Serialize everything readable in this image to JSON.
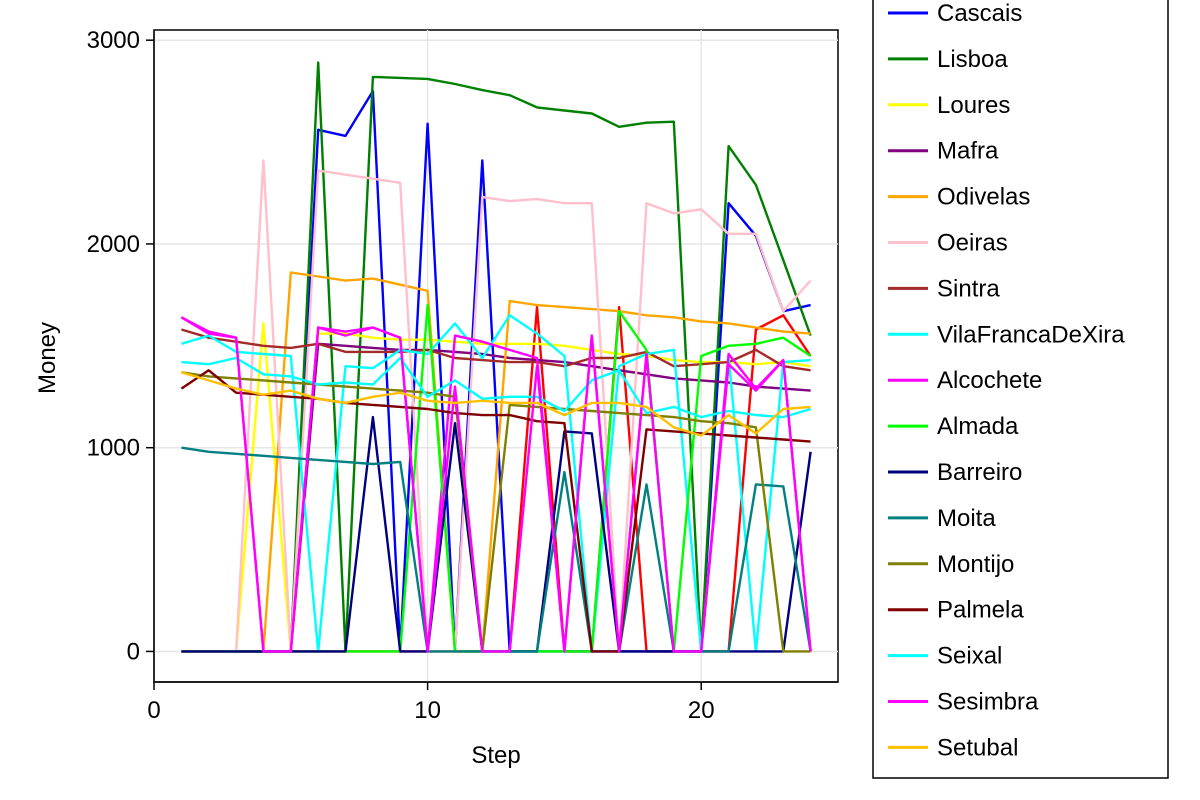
{
  "chart_data": {
    "type": "line",
    "xlabel": "Step",
    "ylabel": "Money",
    "xlim": [
      0,
      25
    ],
    "ylim": [
      -150,
      3050
    ],
    "xticks": [
      0,
      10,
      20
    ],
    "yticks": [
      0,
      1000,
      2000,
      3000
    ],
    "grid": true,
    "legend_position": "right",
    "x": [
      1,
      2,
      3,
      4,
      5,
      6,
      7,
      8,
      9,
      10,
      11,
      12,
      13,
      14,
      15,
      16,
      17,
      18,
      19,
      20,
      21,
      22,
      23,
      24
    ],
    "series": [
      {
        "name": "Cascais",
        "color": "#0000ff",
        "values": [
          0,
          0,
          0,
          0,
          0,
          2560,
          2530,
          2750,
          0,
          2590,
          0,
          2410,
          0,
          0,
          0,
          0,
          0,
          0,
          0,
          0,
          2200,
          2040,
          1670,
          1700
        ]
      },
      {
        "name": "Lisboa",
        "color": "#008000",
        "values": [
          0,
          0,
          0,
          0,
          0,
          2890,
          0,
          2820,
          2815,
          2810,
          2785,
          2755,
          2730,
          2670,
          2655,
          2640,
          2575,
          2595,
          2600,
          0,
          2480,
          2290,
          1920,
          1550
        ]
      },
      {
        "name": "Loures",
        "color": "#ffff00",
        "values": [
          0,
          0,
          0,
          1610,
          0,
          1560,
          1560,
          1540,
          1530,
          1530,
          1520,
          1510,
          1510,
          1510,
          1500,
          1480,
          1460,
          1450,
          1430,
          1420,
          1420,
          1410,
          1420,
          1400
        ]
      },
      {
        "name": "Mafra",
        "color": "#800080",
        "values": [
          0,
          0,
          0,
          0,
          0,
          1510,
          1500,
          1490,
          1480,
          1480,
          1470,
          1460,
          1440,
          1430,
          1420,
          1400,
          1380,
          1360,
          1340,
          1330,
          1320,
          1300,
          1290,
          1280
        ]
      },
      {
        "name": "Odivelas",
        "color": "#ffa500",
        "values": [
          0,
          0,
          0,
          0,
          1860,
          1840,
          1820,
          1830,
          1800,
          1770,
          0,
          0,
          1720,
          1700,
          1690,
          1680,
          1670,
          1650,
          1640,
          1620,
          1610,
          1590,
          1570,
          1560
        ]
      },
      {
        "name": "Oeiras",
        "color": "#ffc0cb",
        "values": [
          0,
          0,
          0,
          2410,
          0,
          2360,
          2340,
          2320,
          2300,
          0,
          0,
          2230,
          2210,
          2220,
          2200,
          2200,
          0,
          2200,
          2150,
          2170,
          2050,
          2050,
          1670,
          1820
        ]
      },
      {
        "name": "Sintra",
        "color": "#a52a2a",
        "values": [
          1580,
          1540,
          1520,
          1500,
          1490,
          1510,
          1470,
          1470,
          1470,
          1480,
          1440,
          1430,
          1420,
          1420,
          1400,
          1440,
          1440,
          1470,
          1400,
          1410,
          1420,
          1480,
          1400,
          1380
        ]
      },
      {
        "name": "VilaFrancaDeXira",
        "color": "#00ffff",
        "values": [
          1510,
          1550,
          1470,
          1460,
          1450,
          0,
          1400,
          1390,
          1480,
          1460,
          1610,
          1440,
          1650,
          1560,
          1450,
          0,
          1400,
          1460,
          1480,
          0,
          1450,
          0,
          1420,
          1430
        ]
      },
      {
        "name": "Alcochete",
        "color": "#ff00ff",
        "values": [
          1640,
          1570,
          1540,
          0,
          0,
          1590,
          1570,
          1590,
          1540,
          0,
          1550,
          1520,
          1480,
          1440,
          0,
          1550,
          0,
          1460,
          0,
          0,
          1460,
          1290,
          1430,
          0
        ]
      },
      {
        "name": "Almada",
        "color": "#00ff00",
        "values": [
          0,
          0,
          0,
          0,
          0,
          0,
          0,
          0,
          0,
          1700,
          0,
          0,
          0,
          0,
          0,
          0,
          1670,
          1480,
          0,
          1450,
          1500,
          1510,
          1540,
          1450
        ]
      },
      {
        "name": "Barreiro",
        "color": "#000080",
        "values": [
          0,
          0,
          0,
          0,
          0,
          0,
          0,
          1150,
          0,
          0,
          1120,
          0,
          0,
          0,
          1080,
          1070,
          0,
          0,
          0,
          0,
          0,
          0,
          0,
          980
        ]
      },
      {
        "name": "Moita",
        "color": "#008080",
        "values": [
          1000,
          980,
          970,
          960,
          950,
          940,
          930,
          920,
          930,
          0,
          0,
          0,
          0,
          0,
          880,
          0,
          0,
          820,
          0,
          0,
          0,
          820,
          810,
          0
        ]
      },
      {
        "name": "Montijo",
        "color": "#808000",
        "values": [
          1370,
          1350,
          1340,
          1330,
          1320,
          1310,
          1300,
          1290,
          1280,
          1270,
          1250,
          0,
          1210,
          1200,
          1190,
          1180,
          1170,
          1160,
          1150,
          1130,
          1120,
          1100,
          0,
          0
        ]
      },
      {
        "name": "Palmela",
        "color": "#800000",
        "values": [
          1290,
          1380,
          1270,
          1260,
          1250,
          1240,
          1220,
          1210,
          1200,
          1190,
          1170,
          1160,
          1160,
          1130,
          1120,
          0,
          0,
          1090,
          1080,
          1070,
          1060,
          1050,
          1040,
          1030
        ]
      },
      {
        "name": "Seixal",
        "color": "#00ffff",
        "values": [
          1420,
          1410,
          1440,
          1360,
          1350,
          1310,
          1320,
          1310,
          1440,
          1250,
          1330,
          1240,
          1250,
          1250,
          1180,
          1330,
          1380,
          1170,
          1200,
          1150,
          1180,
          1160,
          1150,
          1190
        ]
      },
      {
        "name": "Sesimbra",
        "color": "#ff00ff",
        "values": [
          1640,
          1560,
          1540,
          0,
          0,
          1590,
          1550,
          1590,
          1540,
          0,
          1300,
          0,
          0,
          1400,
          0,
          1550,
          0,
          1460,
          0,
          0,
          1410,
          1280,
          1430,
          0
        ]
      },
      {
        "name": "Setubal",
        "color": "#ffc000",
        "values": [
          1370,
          1330,
          1290,
          1260,
          1280,
          1240,
          1220,
          1250,
          1270,
          1230,
          1220,
          1230,
          1220,
          1220,
          1160,
          1220,
          1220,
          1200,
          1100,
          1060,
          1160,
          1070,
          1190,
          1200
        ]
      }
    ],
    "extra_lines": [
      {
        "color": "#ff0000",
        "values": [
          0,
          0,
          0,
          0,
          0,
          0,
          0,
          0,
          0,
          0,
          0,
          0,
          0,
          1690,
          0,
          0,
          1690,
          0,
          0,
          0,
          0,
          1580,
          1650,
          1450
        ]
      }
    ]
  }
}
